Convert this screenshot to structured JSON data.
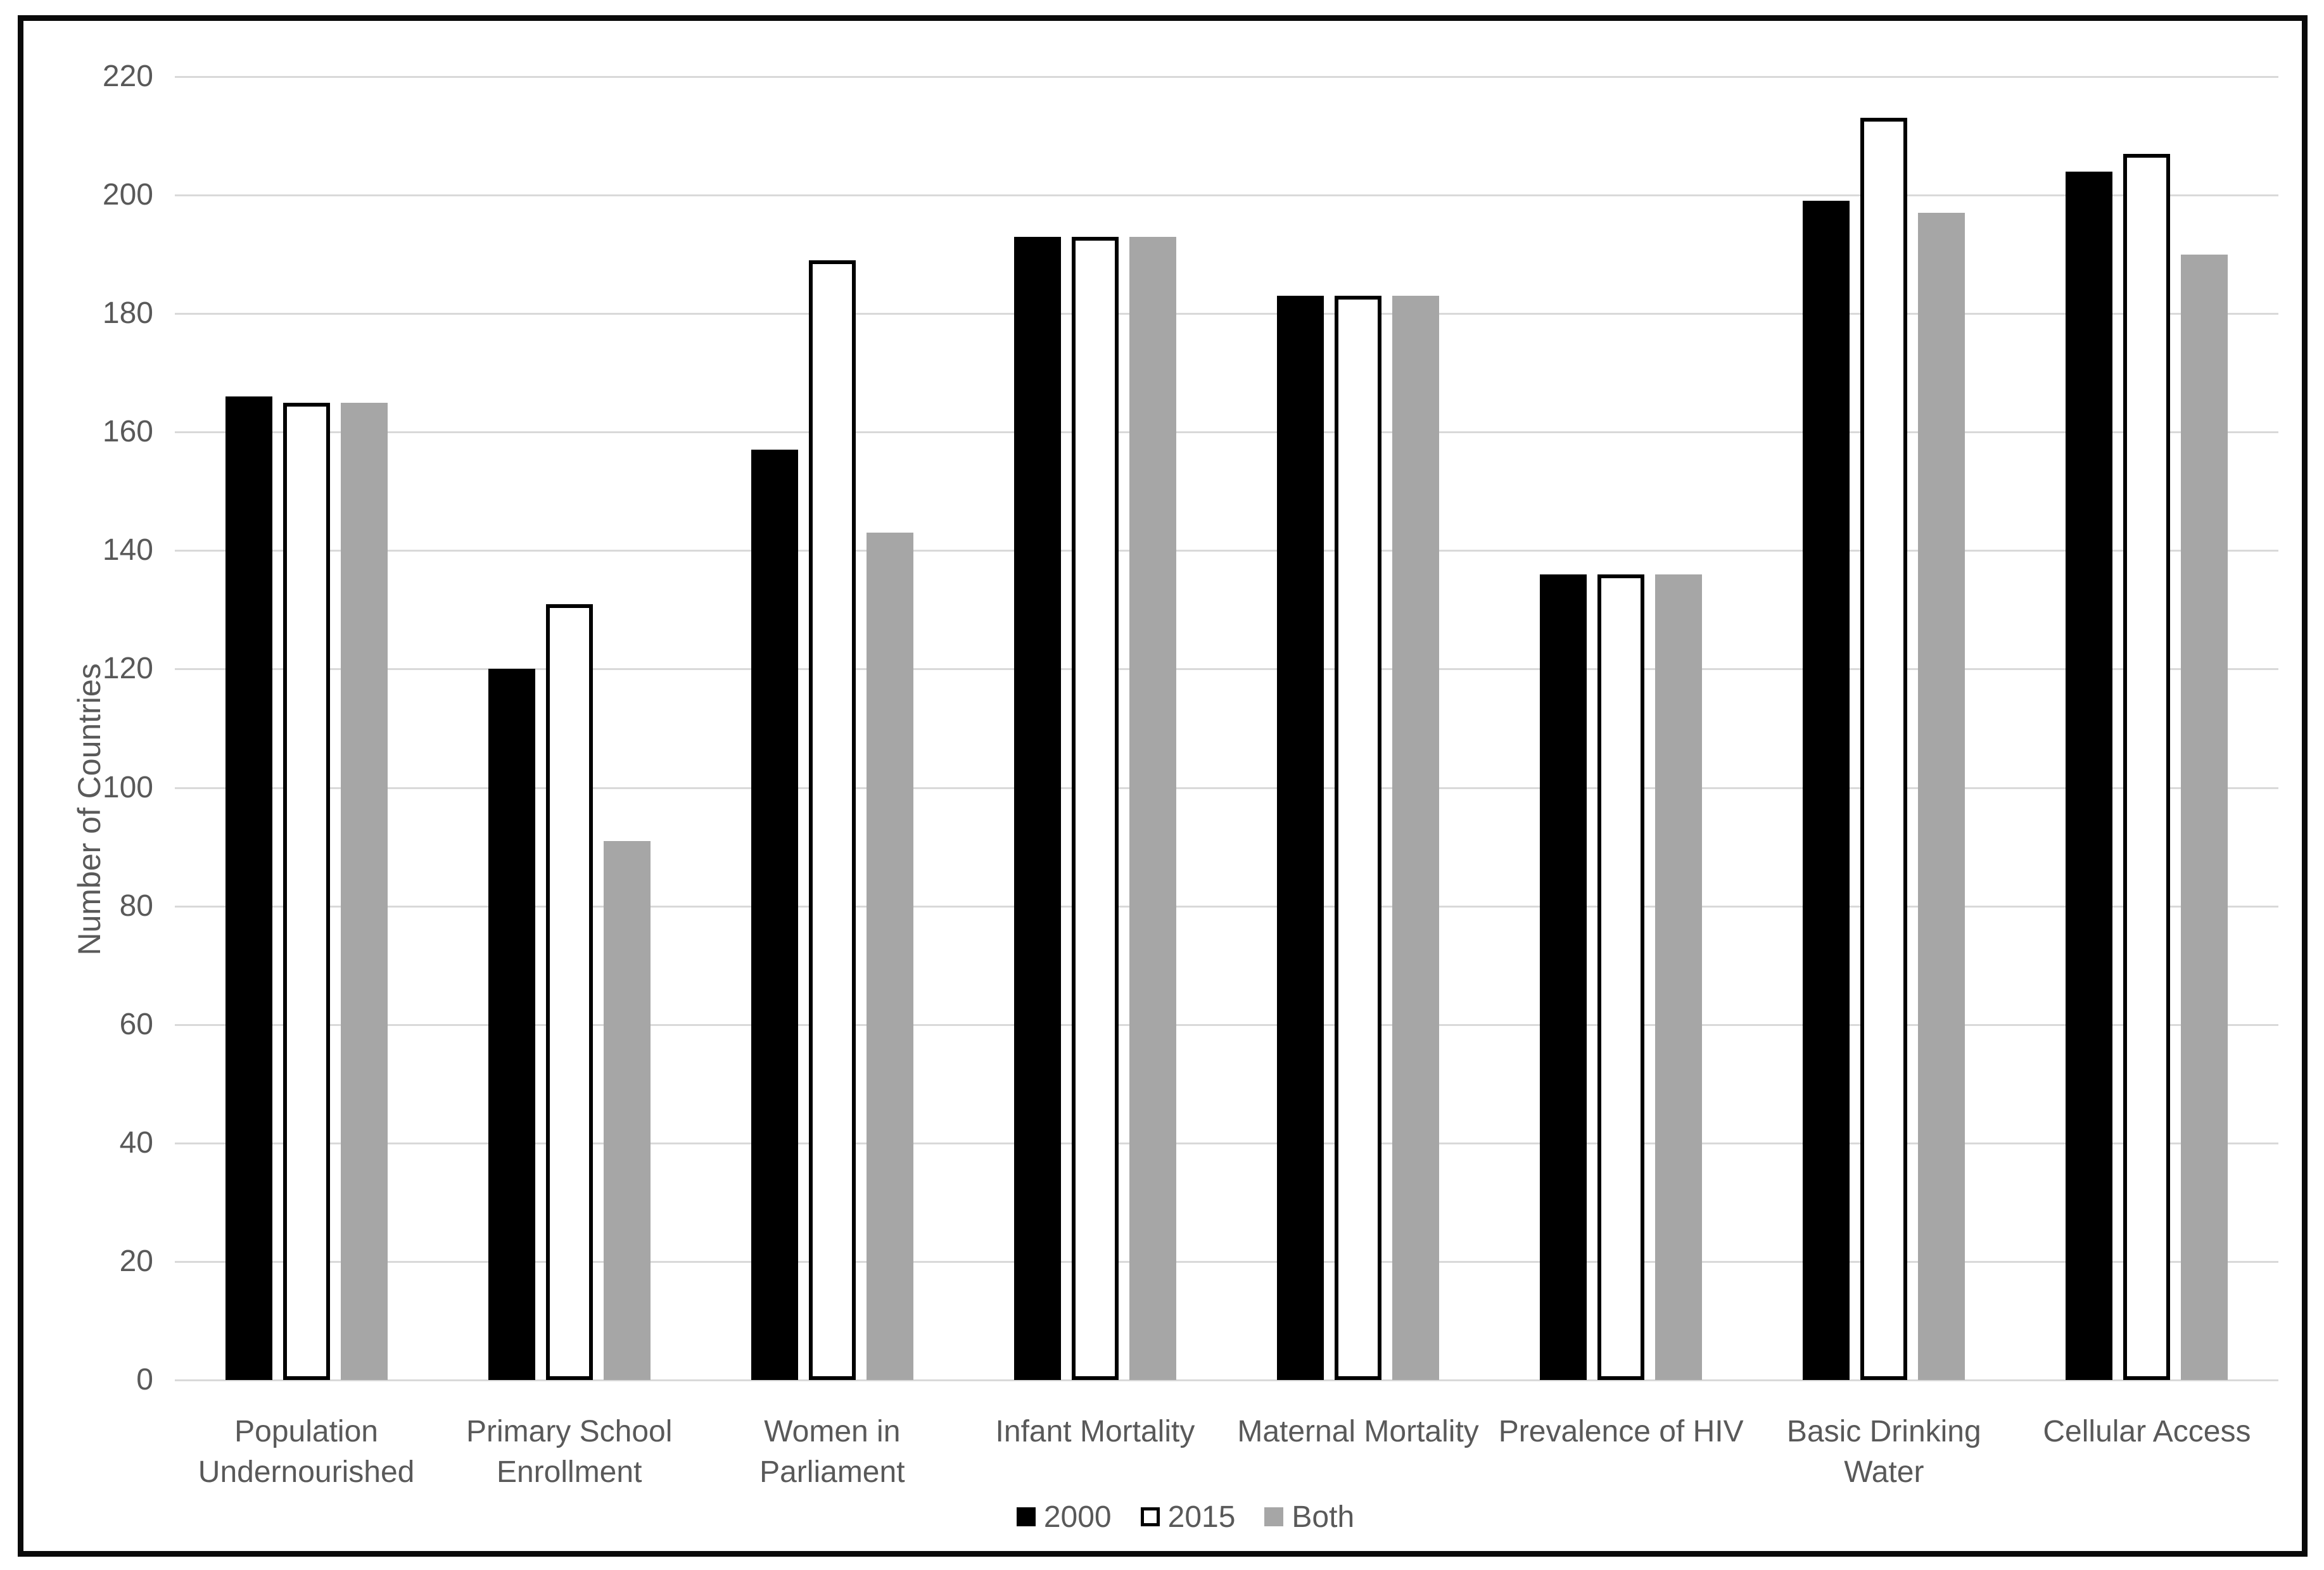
{
  "chart_data": {
    "type": "bar",
    "title": "",
    "xlabel": "",
    "ylabel": "Number of Countries",
    "ylim": [
      0,
      220
    ],
    "ytick_step": 20,
    "yticks": [
      0,
      20,
      40,
      60,
      80,
      100,
      120,
      140,
      160,
      180,
      200,
      220
    ],
    "grid": "horizontal",
    "gridline_color": "#d9d9d9",
    "text_color": "#595959",
    "legend_position": "bottom-center",
    "categories": [
      "Population Undernourished",
      "Primary School Enrollment",
      "Women in Parliament",
      "Infant Mortality",
      "Maternal Mortality",
      "Prevalence of HIV",
      "Basic Drinking Water",
      "Cellular Access"
    ],
    "category_lines": [
      [
        "Population",
        "Undernourished"
      ],
      [
        "Primary School",
        "Enrollment"
      ],
      [
        "Women in",
        "Parliament"
      ],
      [
        "Infant Mortality"
      ],
      [
        "Maternal Mortality"
      ],
      [
        "Prevalence of HIV"
      ],
      [
        "Basic Drinking",
        "Water"
      ],
      [
        "Cellular Access"
      ]
    ],
    "series": [
      {
        "name": "2000",
        "fill": "#000000",
        "outline": null,
        "values": [
          166,
          120,
          157,
          193,
          183,
          136,
          199,
          204
        ]
      },
      {
        "name": "2015",
        "fill": "#ffffff",
        "outline": "#000000",
        "values": [
          165,
          131,
          189,
          193,
          183,
          136,
          213,
          207
        ]
      },
      {
        "name": "Both",
        "fill": "#a6a6a6",
        "outline": null,
        "values": [
          165,
          91,
          143,
          193,
          183,
          136,
          197,
          190
        ]
      }
    ]
  }
}
